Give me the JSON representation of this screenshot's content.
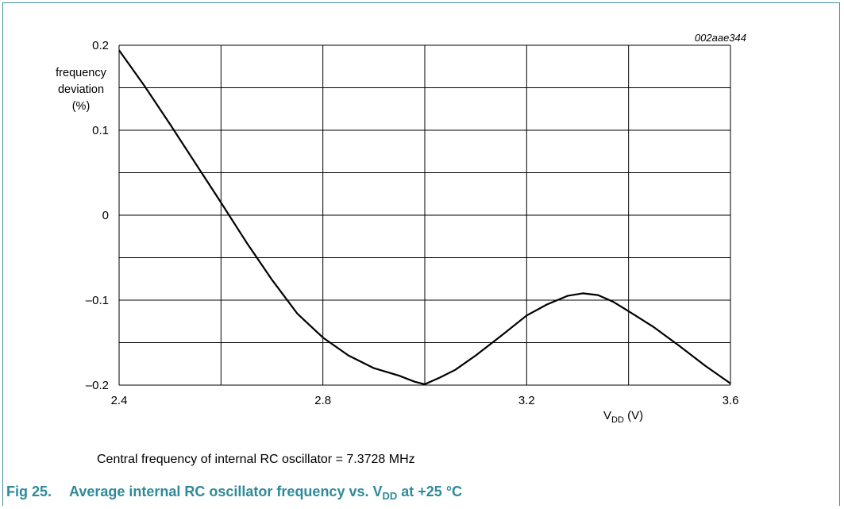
{
  "figure": {
    "code": "002aae344",
    "note": "Central frequency of internal RC oscillator = 7.3728 MHz",
    "caption": {
      "number": "Fig 25.",
      "text_pre": "Average internal RC oscillator frequency vs. V",
      "text_sub": "DD",
      "text_post": " at +25 °C"
    }
  },
  "chart_data": {
    "type": "line",
    "title": "",
    "xlabel": "V",
    "xlabel_sub": "DD",
    "xlabel_unit": " (V)",
    "ylabel_lines": [
      "frequency",
      "deviation",
      "(%)"
    ],
    "xlim": [
      2.4,
      3.6
    ],
    "ylim": [
      -0.2,
      0.2
    ],
    "x_ticks": [
      "2.4",
      "2.8",
      "3.2",
      "3.6"
    ],
    "x_tick_values": [
      2.4,
      2.8,
      3.2,
      3.6
    ],
    "y_ticks": [
      "0.2",
      "0.1",
      "0",
      "–0.1",
      "–0.2"
    ],
    "y_tick_values": [
      0.2,
      0.1,
      0,
      -0.1,
      -0.2
    ],
    "grid": true,
    "x_grid_values": [
      2.4,
      2.6,
      2.8,
      3.0,
      3.2,
      3.4,
      3.6
    ],
    "y_grid_values": [
      -0.2,
      -0.15,
      -0.1,
      -0.05,
      0,
      0.05,
      0.1,
      0.15,
      0.2
    ],
    "series": [
      {
        "color": "#000000",
        "x": [
          2.4,
          2.45,
          2.5,
          2.55,
          2.6,
          2.65,
          2.7,
          2.75,
          2.8,
          2.85,
          2.9,
          2.95,
          2.98,
          3.0,
          3.03,
          3.06,
          3.1,
          3.15,
          3.2,
          3.24,
          3.28,
          3.31,
          3.34,
          3.37,
          3.4,
          3.45,
          3.5,
          3.55,
          3.6
        ],
        "y": [
          0.194,
          0.152,
          0.107,
          0.061,
          0.015,
          -0.032,
          -0.076,
          -0.116,
          -0.144,
          -0.165,
          -0.18,
          -0.189,
          -0.196,
          -0.199,
          -0.191,
          -0.182,
          -0.165,
          -0.142,
          -0.118,
          -0.105,
          -0.095,
          -0.092,
          -0.094,
          -0.102,
          -0.113,
          -0.132,
          -0.154,
          -0.177,
          -0.198
        ]
      }
    ]
  }
}
